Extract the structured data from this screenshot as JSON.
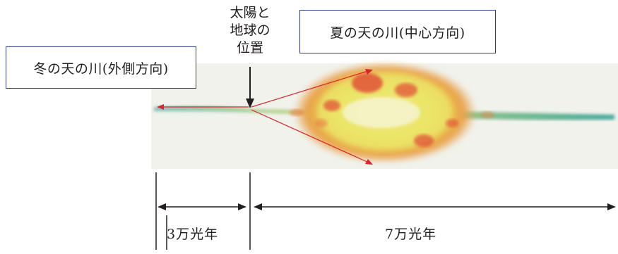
{
  "labels": {
    "winter": "冬の天の川(外側方向)",
    "summer": "夏の天の川(中心方向)",
    "sun_line1": "太陽と",
    "sun_line2": "地球の",
    "sun_line3": "位置"
  },
  "distances": {
    "left": "3万光年",
    "right": "7万光年"
  },
  "colors": {
    "box_border": "#2e3a8c",
    "ray": "#d8262c",
    "galaxy_core": "#e8e15a",
    "galaxy_red": "#e14a35",
    "galaxy_edge": "#2a9d8f"
  }
}
